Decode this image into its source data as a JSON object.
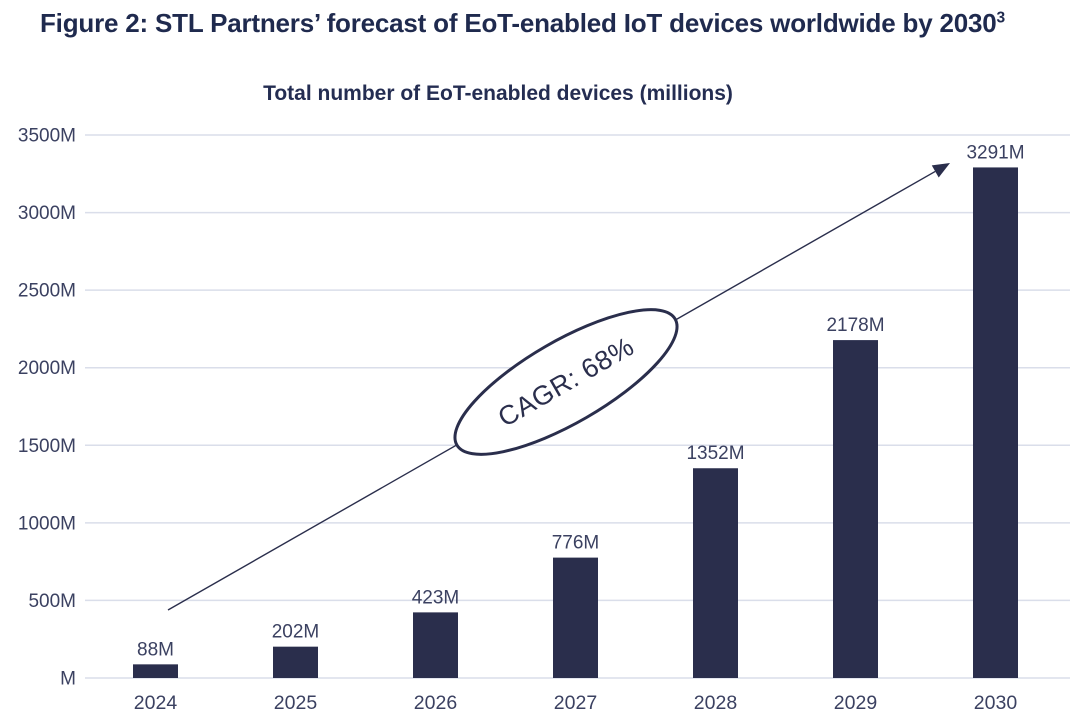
{
  "figure_title": {
    "text": "Figure 2: STL Partners’ forecast of EoT-enabled IoT devices worldwide by 2030",
    "superscript": "3"
  },
  "chart_title": "Total number of EoT-enabled devices (millions)",
  "chart_data": {
    "type": "bar",
    "title": "Total number of EoT-enabled devices (millions)",
    "categories": [
      "2024",
      "2025",
      "2026",
      "2027",
      "2028",
      "2029",
      "2030"
    ],
    "values": [
      88,
      202,
      423,
      776,
      1352,
      2178,
      3291
    ],
    "bar_labels": [
      "88M",
      "202M",
      "423M",
      "776M",
      "1352M",
      "2178M",
      "3291M"
    ],
    "xlabel": "",
    "ylabel": "",
    "ylim": [
      0,
      3500
    ],
    "grid": true,
    "legend": "none",
    "y_ticks": [
      {
        "value": 0,
        "label": "M"
      },
      {
        "value": 500,
        "label": "500M"
      },
      {
        "value": 1000,
        "label": "1000M"
      },
      {
        "value": 1500,
        "label": "1500M"
      },
      {
        "value": 2000,
        "label": "2000M"
      },
      {
        "value": 2500,
        "label": "2500M"
      },
      {
        "value": 3000,
        "label": "3000M"
      },
      {
        "value": 3500,
        "label": "3500M"
      }
    ],
    "annotation": {
      "text": "CAGR: 68%"
    },
    "colors": {
      "bar": "#2a2e4c",
      "grid": "#dadeea",
      "label": "#3b4161",
      "title": "#1f2a4e",
      "annotation_stroke": "#2a2e4c",
      "annotation_fill": "#ffffff"
    }
  }
}
